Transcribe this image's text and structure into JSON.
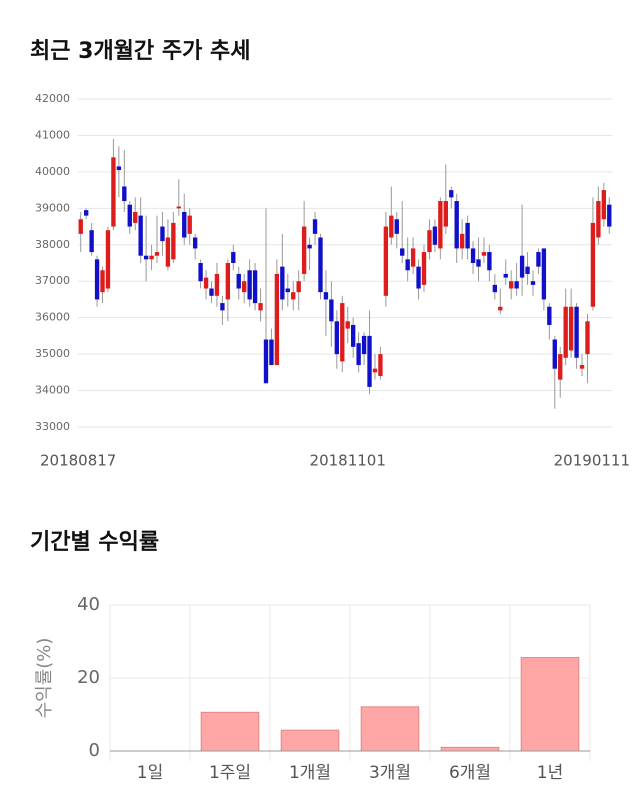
{
  "chart_data": [
    {
      "type": "candlestick",
      "title": "최근 3개월간 주가 추세",
      "categories": [
        "20180817",
        null,
        null,
        null,
        null,
        null,
        null,
        null,
        null,
        null,
        null,
        null,
        null,
        null,
        null,
        null,
        null,
        null,
        null,
        null,
        null,
        null,
        null,
        null,
        null,
        null,
        null,
        null,
        null,
        null,
        null,
        null,
        null,
        null,
        null,
        null,
        null,
        null,
        null,
        null,
        null,
        null,
        null,
        null,
        null,
        null,
        null,
        null,
        null,
        "20181101",
        null,
        null,
        null,
        null,
        null,
        null,
        null,
        null,
        null,
        null,
        null,
        null,
        null,
        null,
        null,
        null,
        null,
        null,
        null,
        null,
        null,
        null,
        null,
        null,
        null,
        null,
        null,
        null,
        null,
        null,
        null,
        null,
        null,
        null,
        null,
        null,
        null,
        null,
        null,
        null,
        null,
        null,
        null,
        null,
        null,
        null,
        null,
        "20190111"
      ],
      "open": [
        38300,
        38950,
        38400,
        37600,
        36700,
        36800,
        38500,
        40150,
        39600,
        39100,
        38600,
        38800,
        37700,
        37600,
        37700,
        38500,
        37400,
        37600,
        39000,
        38900,
        38300,
        38200,
        37500,
        36800,
        36800,
        36600,
        36400,
        36500,
        37800,
        37200,
        36700,
        37300,
        37300,
        36200,
        35400,
        35400,
        34700,
        37400,
        36800,
        36500,
        36700,
        37200,
        38000,
        38700,
        38200,
        36700,
        36500,
        35900,
        34800,
        35700,
        35800,
        35300,
        35500,
        35500,
        34500,
        34400,
        36600,
        38200,
        38700,
        37900,
        37600,
        37400,
        37400,
        36900,
        37800,
        38500,
        37900,
        38500,
        39500,
        39200,
        37900,
        38600,
        37900,
        37600,
        37700,
        37800,
        36900,
        36200,
        37200,
        36800,
        37000,
        37700,
        37400,
        37000,
        37800,
        37900,
        36300,
        35400,
        34300,
        34900,
        35100,
        36300,
        34600,
        35000,
        36300,
        38200,
        38700,
        39100
      ],
      "high": [
        38900,
        39000,
        38600,
        37700,
        37400,
        38500,
        40900,
        40700,
        40600,
        39200,
        39300,
        39300,
        38800,
        38000,
        38800,
        38900,
        38700,
        38900,
        39800,
        39400,
        39000,
        38300,
        37600,
        37300,
        37000,
        37500,
        36600,
        37600,
        38000,
        37400,
        37200,
        37600,
        37500,
        36800,
        39000,
        35700,
        37600,
        38300,
        37200,
        37000,
        37300,
        39200,
        38200,
        38900,
        38300,
        37300,
        37000,
        36200,
        36600,
        36300,
        36000,
        35600,
        35600,
        36200,
        35000,
        35200,
        38900,
        39600,
        38900,
        39200,
        38200,
        38200,
        37600,
        38000,
        38700,
        38700,
        39300,
        40200,
        39600,
        39400,
        38700,
        38800,
        38100,
        38200,
        38200,
        38000,
        37200,
        36800,
        37600,
        37300,
        37500,
        39100,
        37800,
        37300,
        37900,
        37900,
        36400,
        35500,
        35200,
        36800,
        36800,
        36400,
        35000,
        36100,
        39300,
        39600,
        39700,
        39300
      ],
      "low": [
        37800,
        38700,
        37700,
        36300,
        36400,
        36700,
        38400,
        39300,
        38900,
        38300,
        38400,
        37500,
        37000,
        37300,
        37500,
        37700,
        37300,
        37500,
        38800,
        38000,
        38000,
        37600,
        36800,
        36500,
        36400,
        36300,
        35800,
        35900,
        37300,
        36500,
        36400,
        36300,
        36200,
        35900,
        34200,
        34700,
        34700,
        36200,
        36300,
        36200,
        36200,
        37000,
        37300,
        38000,
        36500,
        35500,
        35200,
        34600,
        34500,
        35300,
        34900,
        34500,
        34700,
        33900,
        34300,
        34300,
        36300,
        38000,
        37900,
        37500,
        37000,
        37200,
        36500,
        36700,
        37600,
        37800,
        37600,
        38300,
        39000,
        37500,
        37600,
        37600,
        37200,
        37000,
        37500,
        37000,
        36500,
        36100,
        36900,
        36500,
        36600,
        36600,
        36900,
        36600,
        37200,
        36200,
        35400,
        33500,
        33800,
        34700,
        34900,
        34600,
        34400,
        34200,
        36200,
        38000,
        38500,
        38300
      ],
      "close": [
        38700,
        38800,
        37800,
        36500,
        37300,
        38400,
        40400,
        40050,
        39200,
        38500,
        38900,
        37700,
        37600,
        37700,
        37800,
        38100,
        38200,
        38600,
        39050,
        38200,
        38800,
        37900,
        37000,
        37100,
        36600,
        37200,
        36200,
        37500,
        37500,
        36800,
        37000,
        36500,
        36400,
        36400,
        34200,
        34700,
        37200,
        36500,
        36700,
        36700,
        37000,
        38500,
        37900,
        38300,
        36700,
        36500,
        35900,
        35000,
        36400,
        35900,
        35200,
        34700,
        35000,
        34100,
        34600,
        35000,
        38500,
        38800,
        38300,
        37700,
        37300,
        37900,
        36800,
        37800,
        38400,
        38000,
        39200,
        39200,
        39300,
        37900,
        38300,
        37900,
        37500,
        37400,
        37800,
        37300,
        36700,
        36300,
        37100,
        37000,
        36800,
        37100,
        37200,
        36900,
        37400,
        36500,
        35800,
        34600,
        35000,
        36300,
        36300,
        34900,
        34700,
        35900,
        38600,
        39200,
        39500,
        38500
      ],
      "up_color": "#dd1c1c",
      "down_color": "#1010c8",
      "ylim": [
        33000,
        42000
      ],
      "yticks": [
        33000,
        34000,
        35000,
        36000,
        37000,
        38000,
        39000,
        40000,
        41000,
        42000
      ],
      "grid": true
    },
    {
      "type": "bar",
      "title": "기간별 수익률",
      "y_label": "수익률(%)",
      "categories": [
        "1일",
        "1주일",
        "1개월",
        "3개월",
        "6개월",
        "1년"
      ],
      "values": [
        0,
        10.6,
        5.7,
        12.1,
        1.0,
        25.6
      ],
      "color": "#ffa6a6",
      "ylim": [
        0,
        40
      ],
      "yticks": [
        0,
        20,
        40
      ],
      "grid": true
    }
  ]
}
